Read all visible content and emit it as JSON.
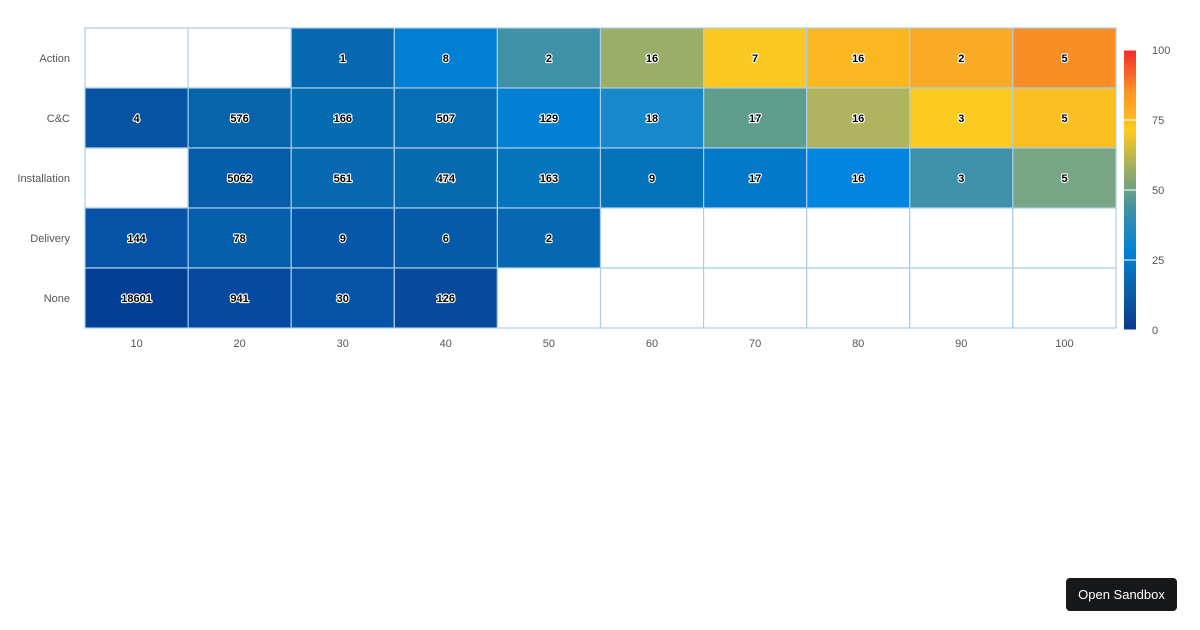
{
  "chart_data": {
    "type": "heatmap",
    "title": "",
    "xlabel": "",
    "ylabel": "",
    "x_categories": [
      "10",
      "20",
      "30",
      "40",
      "50",
      "60",
      "70",
      "80",
      "90",
      "100"
    ],
    "y_categories": [
      "Action",
      "C&C",
      "Installation",
      "Delivery",
      "None"
    ],
    "values": [
      [
        null,
        null,
        1,
        8,
        2,
        16,
        7,
        16,
        2,
        5
      ],
      [
        4,
        576,
        166,
        507,
        129,
        18,
        17,
        16,
        3,
        5
      ],
      [
        null,
        5062,
        561,
        474,
        163,
        9,
        17,
        16,
        3,
        5
      ],
      [
        144,
        78,
        9,
        6,
        2,
        null,
        null,
        null,
        null,
        null
      ],
      [
        18601,
        941,
        30,
        126,
        null,
        null,
        null,
        null,
        null,
        null
      ]
    ],
    "color_legend": {
      "ticks": [
        "100",
        "75",
        "50",
        "25",
        "0"
      ],
      "stops": [
        "#0a3a8c",
        "#0b5fa8",
        "#0282d6",
        "#3e91a6",
        "#9bae65",
        "#ffca1f",
        "#fb9124",
        "#f42a2c"
      ]
    },
    "cell_colors": [
      [
        null,
        null,
        "#0668b0",
        "#0280d4",
        "#3e91a6",
        "#9bae68",
        "#fcc821",
        "#fbb720",
        "#f9ab25",
        "#f98f24"
      ],
      [
        "#0653a4",
        "#0664ab",
        "#066cb2",
        "#056eb5",
        "#0280d4",
        "#1788ca",
        "#5f9e8d",
        "#b0b45f",
        "#fdcb20",
        "#fbbf22"
      ],
      [
        null,
        "#055ca8",
        "#0668ae",
        "#066aae",
        "#0474bc",
        "#0471bb",
        "#0479c9",
        "#0185e0",
        "#3d92aa",
        "#79a684"
      ],
      [
        "#0652a6",
        "#065fab",
        "#0657a9",
        "#065ba8",
        "#0668b0",
        null,
        null,
        null,
        null,
        null
      ],
      [
        "#033f95",
        "#054aa0",
        "#0552a6",
        "#054a9b",
        null,
        null,
        null,
        null,
        null,
        null
      ]
    ],
    "grid": true,
    "legend": "right"
  },
  "sandbox": {
    "label": "Open Sandbox"
  }
}
